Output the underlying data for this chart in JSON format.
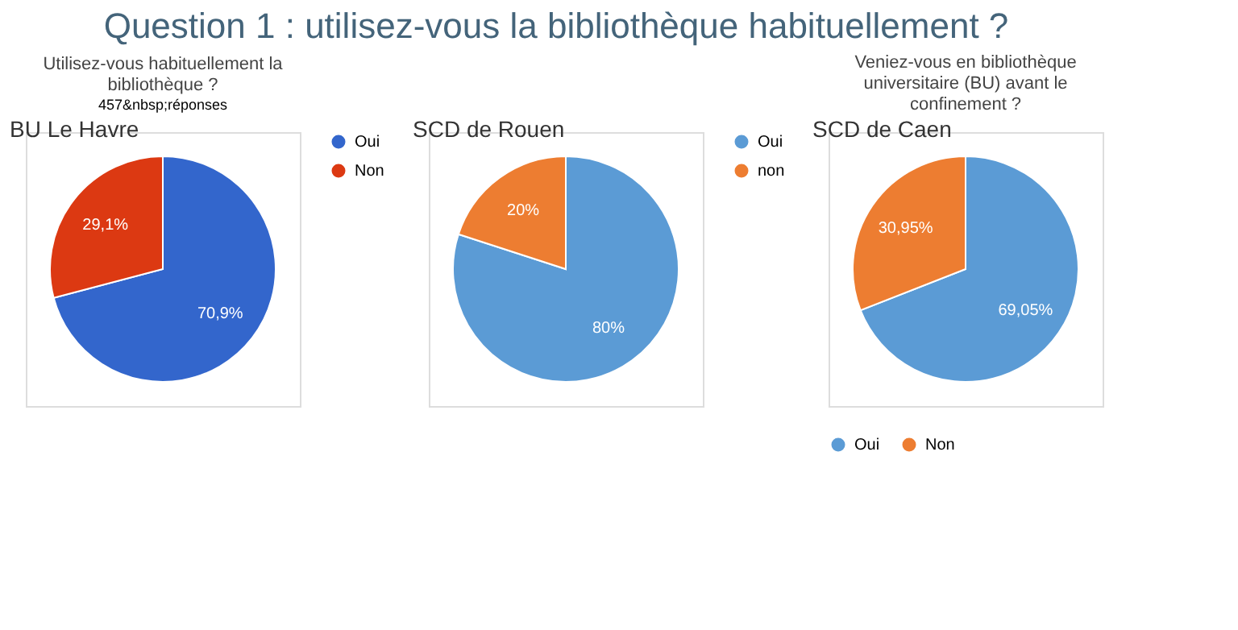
{
  "chart_data": [
    {
      "type": "pie",
      "title": "Utilisez-vous habituellement la bibliothèque ?",
      "subtitle": "457&nbsp;réponses",
      "annotations": [
        "Question 1 : utilisez-vous la bibliothèque habituellement ?",
        "BU Le Havre"
      ],
      "categories": [
        "Oui",
        "Non"
      ],
      "values": [
        70.9,
        29.1
      ],
      "colors": [
        "#3366cc",
        "#dc3912"
      ],
      "value_labels": [
        "70,9%",
        "29,1%"
      ],
      "legend": "right"
    },
    {
      "type": "pie",
      "annotations": [
        "SCD de Rouen"
      ],
      "categories": [
        "Oui",
        "non"
      ],
      "values": [
        80,
        20
      ],
      "colors": [
        "#5b9bd5",
        "#ed7d31"
      ],
      "value_labels": [
        "80%",
        "20%"
      ],
      "legend": "right"
    },
    {
      "type": "pie",
      "title": "Veniez-vous en bibliothèque universitaire (BU) avant le confinement ?",
      "annotations": [
        "SCD de Caen"
      ],
      "categories": [
        "Oui",
        "Non"
      ],
      "values": [
        69.05,
        30.95
      ],
      "colors": [
        "#5b9bd5",
        "#ed7d31"
      ],
      "value_labels": [
        "69,05%",
        "30,95%"
      ],
      "legend": "bottom"
    }
  ]
}
